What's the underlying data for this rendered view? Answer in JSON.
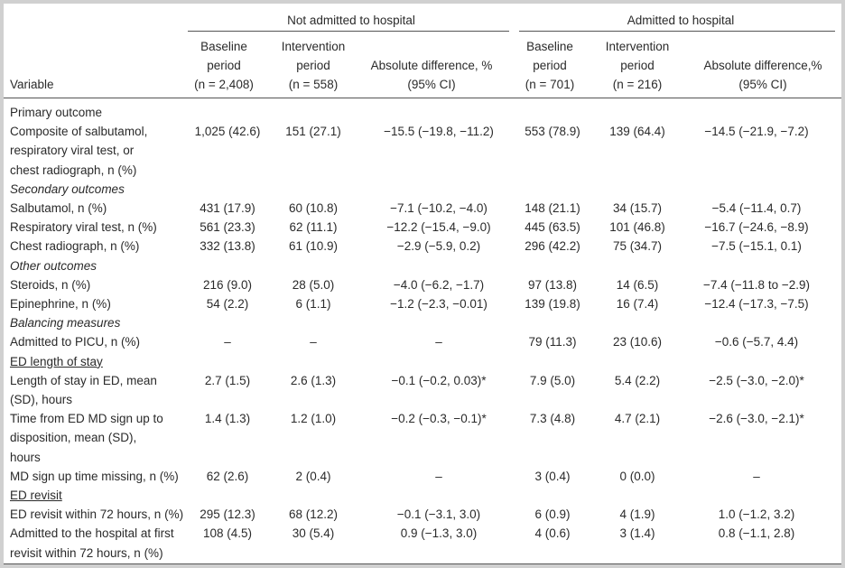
{
  "header": {
    "groups": [
      "Not admitted to hospital",
      "Admitted to hospital"
    ],
    "variable": "Variable",
    "columns": [
      [
        "Baseline",
        "period",
        "(n = 2,408)"
      ],
      [
        "Intervention",
        "period",
        "(n = 558)"
      ],
      [
        "Absolute difference, %",
        "(95% CI)"
      ],
      [
        "Baseline",
        "period",
        "(n = 701)"
      ],
      [
        "Intervention",
        "period",
        "(n = 216)"
      ],
      [
        "Absolute difference,%",
        "(95% CI)"
      ]
    ]
  },
  "table": {
    "rows": [
      {
        "variable": [
          "Primary outcome"
        ]
      },
      {
        "variable": [
          "Composite of salbutamol,",
          "respiratory viral test, or",
          "chest radiograph, n (%)"
        ],
        "cells": [
          "1,025 (42.6)",
          "151 (27.1)",
          "−15.5 (−19.8, −11.2)",
          "553 (78.9)",
          "139 (64.4)",
          "−14.5 (−21.9, −7.2)"
        ]
      },
      {
        "variable": [
          "Secondary outcomes"
        ],
        "style": "italic"
      },
      {
        "variable": [
          "Salbutamol, n (%)"
        ],
        "cells": [
          "431 (17.9)",
          "60 (10.8)",
          "−7.1 (−10.2, −4.0)",
          "148 (21.1)",
          "34 (15.7)",
          "−5.4 (−11.4, 0.7)"
        ]
      },
      {
        "variable": [
          "Respiratory viral test, n (%)"
        ],
        "cells": [
          "561 (23.3)",
          "62 (11.1)",
          "−12.2 (−15.4, −9.0)",
          "445 (63.5)",
          "101 (46.8)",
          "−16.7 (−24.6, −8.9)"
        ]
      },
      {
        "variable": [
          "Chest radiograph, n (%)"
        ],
        "cells": [
          "332 (13.8)",
          "61 (10.9)",
          "−2.9 (−5.9, 0.2)",
          "296 (42.2)",
          "75 (34.7)",
          "−7.5 (−15.1, 0.1)"
        ]
      },
      {
        "variable": [
          "Other outcomes"
        ],
        "style": "italic"
      },
      {
        "variable": [
          "Steroids, n (%)"
        ],
        "cells": [
          "216 (9.0)",
          "28 (5.0)",
          "−4.0 (−6.2, −1.7)",
          "97 (13.8)",
          "14 (6.5)",
          "−7.4 (−11.8 to −2.9)"
        ]
      },
      {
        "variable": [
          "Epinephrine, n (%)"
        ],
        "cells": [
          "54 (2.2)",
          "6 (1.1)",
          "−1.2 (−2.3, −0.01)",
          "139 (19.8)",
          "16 (7.4)",
          "−12.4 (−17.3, −7.5)"
        ]
      },
      {
        "variable": [
          "Balancing measures"
        ],
        "style": "italic"
      },
      {
        "variable": [
          "Admitted to PICU, n (%)"
        ],
        "cells": [
          "–",
          "–",
          "–",
          "79 (11.3)",
          "23 (10.6)",
          "−0.6 (−5.7, 4.4)"
        ]
      },
      {
        "variable": [
          "ED length of stay"
        ],
        "style": "underline"
      },
      {
        "variable": [
          "Length of stay in ED, mean",
          "(SD), hours"
        ],
        "cells": [
          "2.7 (1.5)",
          "2.6 (1.3)",
          "−0.1 (−0.2, 0.03)*",
          "7.9 (5.0)",
          "5.4 (2.2)",
          "−2.5 (−3.0, −2.0)*"
        ]
      },
      {
        "variable": [
          "Time from ED MD sign up to",
          "disposition, mean (SD),",
          "hours"
        ],
        "cells": [
          "1.4 (1.3)",
          "1.2 (1.0)",
          "−0.2 (−0.3, −0.1)*",
          "7.3 (4.8)",
          "4.7 (2.1)",
          "−2.6 (−3.0, −2.1)*"
        ]
      },
      {
        "variable": [
          "MD sign up time missing, n (%)"
        ],
        "cells": [
          "62 (2.6)",
          "2 (0.4)",
          "–",
          "3 (0.4)",
          "0 (0.0)",
          "–"
        ]
      },
      {
        "variable": [
          "ED revisit"
        ],
        "style": "underline"
      },
      {
        "variable": [
          "ED revisit within 72 hours, n (%)"
        ],
        "cells": [
          "295 (12.3)",
          "68 (12.2)",
          "−0.1 (−3.1, 3.0)",
          "6 (0.9)",
          "4 (1.9)",
          "1.0 (−1.2, 3.2)"
        ]
      },
      {
        "variable": [
          "Admitted to the hospital at first",
          "revisit within 72 hours, n (%)"
        ],
        "cells": [
          "108 (4.5)",
          "30 (5.4)",
          "0.9 (−1.3, 3.0)",
          "4 (0.6)",
          "3 (1.4)",
          "0.8 (−1.1, 2.8)"
        ]
      }
    ]
  }
}
